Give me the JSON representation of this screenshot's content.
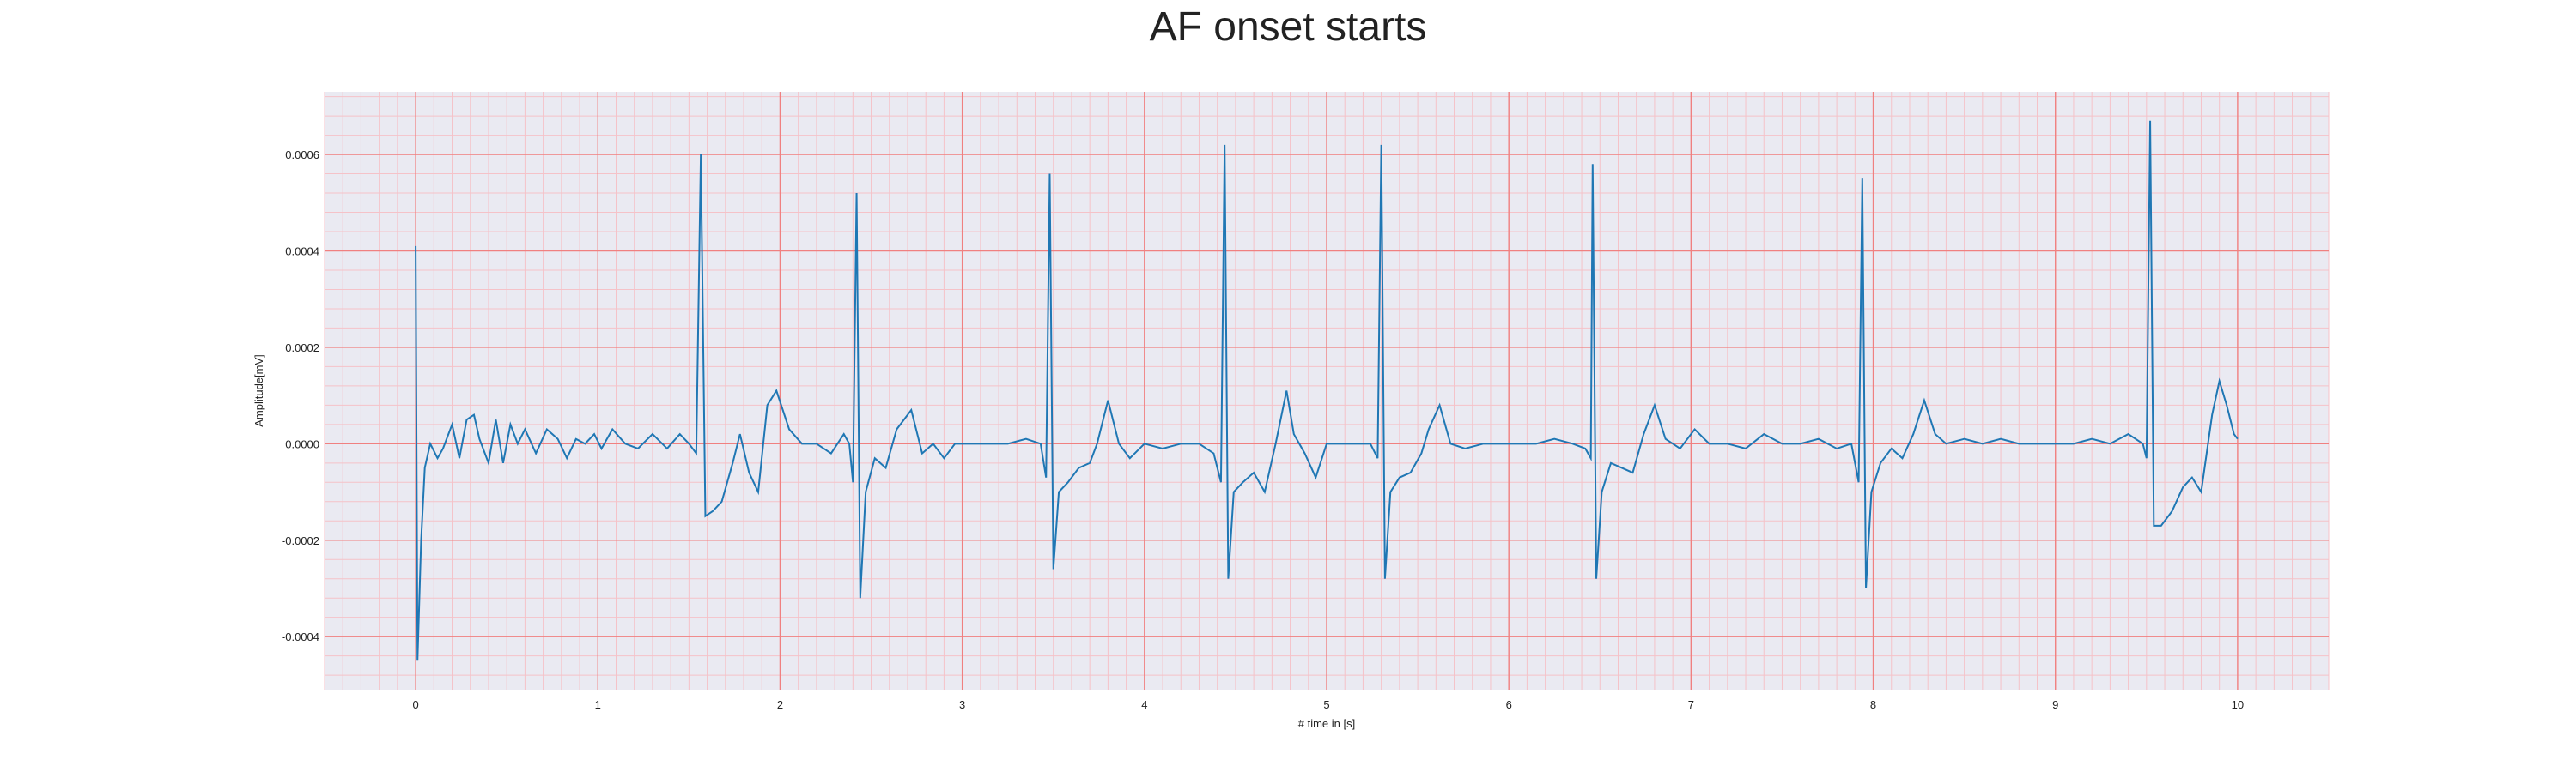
{
  "chart_data": {
    "type": "line",
    "title": "AF onset starts",
    "xlabel": "# time in [s]",
    "ylabel": "Amplitude[mV]",
    "xlim": [
      -0.5,
      10.5
    ],
    "ylim": [
      -0.00051,
      0.00073
    ],
    "x_ticks": [
      0,
      1,
      2,
      3,
      4,
      5,
      6,
      7,
      8,
      9,
      10
    ],
    "x_tick_labels": [
      "0",
      "1",
      "2",
      "3",
      "4",
      "5",
      "6",
      "7",
      "8",
      "9",
      "10"
    ],
    "y_ticks": [
      -0.0004,
      -0.0002,
      0.0,
      0.0002,
      0.0004,
      0.0006
    ],
    "y_tick_labels": [
      "-0.0004",
      "-0.0002",
      "0.0000",
      "0.0002",
      "0.0004",
      "0.0006"
    ],
    "grid": true,
    "minor_grid": true,
    "colors": {
      "background": "#eaeaf2",
      "major_grid": "#f08080",
      "minor_grid": "#f5c2c8",
      "line": "#1f77b4"
    },
    "series": [
      {
        "values": [
          [
            0.0,
            0.00041
          ],
          [
            0.01,
            -0.00045
          ],
          [
            0.03,
            -0.0002
          ],
          [
            0.05,
            -5e-05
          ],
          [
            0.08,
            0.0
          ],
          [
            0.12,
            -3e-05
          ],
          [
            0.15,
            -1e-05
          ],
          [
            0.2,
            4e-05
          ],
          [
            0.24,
            -3e-05
          ],
          [
            0.28,
            5e-05
          ],
          [
            0.32,
            6e-05
          ],
          [
            0.35,
            1e-05
          ],
          [
            0.4,
            -4e-05
          ],
          [
            0.44,
            5e-05
          ],
          [
            0.48,
            -4e-05
          ],
          [
            0.52,
            4e-05
          ],
          [
            0.56,
            0.0
          ],
          [
            0.6,
            3e-05
          ],
          [
            0.66,
            -2e-05
          ],
          [
            0.72,
            3e-05
          ],
          [
            0.78,
            1e-05
          ],
          [
            0.83,
            -3e-05
          ],
          [
            0.88,
            1e-05
          ],
          [
            0.93,
            0.0
          ],
          [
            0.98,
            2e-05
          ],
          [
            1.02,
            -1e-05
          ],
          [
            1.08,
            3e-05
          ],
          [
            1.15,
            0.0
          ],
          [
            1.22,
            -1e-05
          ],
          [
            1.3,
            2e-05
          ],
          [
            1.38,
            -1e-05
          ],
          [
            1.45,
            2e-05
          ],
          [
            1.5,
            0.0
          ],
          [
            1.54,
            -2e-05
          ],
          [
            1.565,
            0.0006
          ],
          [
            1.59,
            -0.00015
          ],
          [
            1.63,
            -0.00014
          ],
          [
            1.68,
            -0.00012
          ],
          [
            1.74,
            -4e-05
          ],
          [
            1.78,
            2e-05
          ],
          [
            1.83,
            -6e-05
          ],
          [
            1.88,
            -0.0001
          ],
          [
            1.93,
            8e-05
          ],
          [
            1.98,
            0.00011
          ],
          [
            2.05,
            3e-05
          ],
          [
            2.12,
            0.0
          ],
          [
            2.2,
            0.0
          ],
          [
            2.28,
            -2e-05
          ],
          [
            2.35,
            2e-05
          ],
          [
            2.38,
            0.0
          ],
          [
            2.4,
            -8e-05
          ],
          [
            2.42,
            0.00052
          ],
          [
            2.44,
            -0.00032
          ],
          [
            2.47,
            -0.0001
          ],
          [
            2.52,
            -3e-05
          ],
          [
            2.58,
            -5e-05
          ],
          [
            2.64,
            3e-05
          ],
          [
            2.72,
            7e-05
          ],
          [
            2.78,
            -2e-05
          ],
          [
            2.84,
            0.0
          ],
          [
            2.9,
            -3e-05
          ],
          [
            2.96,
            0.0
          ],
          [
            3.05,
            0.0
          ],
          [
            3.15,
            0.0
          ],
          [
            3.25,
            0.0
          ],
          [
            3.35,
            1e-05
          ],
          [
            3.43,
            0.0
          ],
          [
            3.46,
            -7e-05
          ],
          [
            3.48,
            0.00056
          ],
          [
            3.5,
            -0.00026
          ],
          [
            3.53,
            -0.0001
          ],
          [
            3.58,
            -8e-05
          ],
          [
            3.64,
            -5e-05
          ],
          [
            3.7,
            -4e-05
          ],
          [
            3.74,
            0.0
          ],
          [
            3.8,
            9e-05
          ],
          [
            3.86,
            0.0
          ],
          [
            3.92,
            -3e-05
          ],
          [
            4.0,
            0.0
          ],
          [
            4.1,
            -1e-05
          ],
          [
            4.2,
            0.0
          ],
          [
            4.3,
            0.0
          ],
          [
            4.38,
            -2e-05
          ],
          [
            4.42,
            -8e-05
          ],
          [
            4.44,
            0.00062
          ],
          [
            4.46,
            -0.00028
          ],
          [
            4.49,
            -0.0001
          ],
          [
            4.54,
            -8e-05
          ],
          [
            4.6,
            -6e-05
          ],
          [
            4.66,
            -0.0001
          ],
          [
            4.72,
            0.0
          ],
          [
            4.78,
            0.00011
          ],
          [
            4.82,
            2e-05
          ],
          [
            4.88,
            -2e-05
          ],
          [
            4.94,
            -7e-05
          ],
          [
            5.0,
            0.0
          ],
          [
            5.08,
            0.0
          ],
          [
            5.16,
            0.0
          ],
          [
            5.24,
            0.0
          ],
          [
            5.28,
            -3e-05
          ],
          [
            5.3,
            0.00062
          ],
          [
            5.32,
            -0.00028
          ],
          [
            5.35,
            -0.0001
          ],
          [
            5.4,
            -7e-05
          ],
          [
            5.46,
            -6e-05
          ],
          [
            5.52,
            -2e-05
          ],
          [
            5.56,
            3e-05
          ],
          [
            5.62,
            8e-05
          ],
          [
            5.68,
            0.0
          ],
          [
            5.76,
            -1e-05
          ],
          [
            5.86,
            0.0
          ],
          [
            5.96,
            0.0
          ],
          [
            6.05,
            0.0
          ],
          [
            6.15,
            0.0
          ],
          [
            6.25,
            1e-05
          ],
          [
            6.35,
            0.0
          ],
          [
            6.42,
            -1e-05
          ],
          [
            6.45,
            -3e-05
          ],
          [
            6.46,
            0.00058
          ],
          [
            6.48,
            -0.00028
          ],
          [
            6.51,
            -0.0001
          ],
          [
            6.56,
            -4e-05
          ],
          [
            6.62,
            -5e-05
          ],
          [
            6.68,
            -6e-05
          ],
          [
            6.74,
            2e-05
          ],
          [
            6.8,
            8e-05
          ],
          [
            6.86,
            1e-05
          ],
          [
            6.94,
            -1e-05
          ],
          [
            7.02,
            3e-05
          ],
          [
            7.1,
            0.0
          ],
          [
            7.2,
            0.0
          ],
          [
            7.3,
            -1e-05
          ],
          [
            7.4,
            2e-05
          ],
          [
            7.5,
            0.0
          ],
          [
            7.6,
            0.0
          ],
          [
            7.7,
            1e-05
          ],
          [
            7.8,
            -1e-05
          ],
          [
            7.88,
            0.0
          ],
          [
            7.92,
            -8e-05
          ],
          [
            7.94,
            0.00055
          ],
          [
            7.96,
            -0.0003
          ],
          [
            7.99,
            -0.0001
          ],
          [
            8.04,
            -4e-05
          ],
          [
            8.1,
            -1e-05
          ],
          [
            8.16,
            -3e-05
          ],
          [
            8.22,
            2e-05
          ],
          [
            8.28,
            9e-05
          ],
          [
            8.34,
            2e-05
          ],
          [
            8.4,
            0.0
          ],
          [
            8.5,
            1e-05
          ],
          [
            8.6,
            0.0
          ],
          [
            8.7,
            1e-05
          ],
          [
            8.8,
            0.0
          ],
          [
            8.9,
            0.0
          ],
          [
            9.0,
            0.0
          ],
          [
            9.1,
            0.0
          ],
          [
            9.2,
            1e-05
          ],
          [
            9.3,
            0.0
          ],
          [
            9.4,
            2e-05
          ],
          [
            9.48,
            0.0
          ],
          [
            9.5,
            -3e-05
          ],
          [
            9.52,
            0.00067
          ],
          [
            9.54,
            -0.00017
          ],
          [
            9.58,
            -0.00017
          ],
          [
            9.64,
            -0.00014
          ],
          [
            9.7,
            -9e-05
          ],
          [
            9.75,
            -7e-05
          ],
          [
            9.8,
            -0.0001
          ],
          [
            9.86,
            6e-05
          ],
          [
            9.9,
            0.00013
          ],
          [
            9.94,
            8e-05
          ],
          [
            9.98,
            2e-05
          ],
          [
            10.0,
            1e-05
          ]
        ]
      }
    ]
  }
}
